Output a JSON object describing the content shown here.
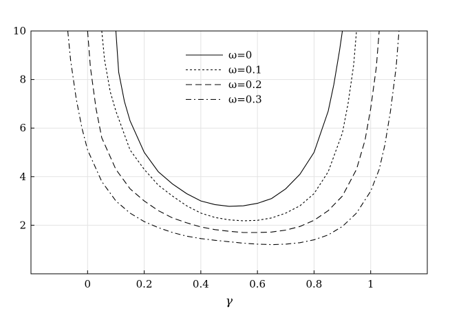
{
  "chart_data": {
    "type": "line",
    "xlabel": "γ",
    "ylabel": "",
    "xlim": [
      -0.2,
      1.2
    ],
    "ylim": [
      0,
      10
    ],
    "xticks": [
      0,
      0.2,
      0.4,
      0.6,
      0.8,
      1
    ],
    "xtick_labels": [
      "0",
      "0.2",
      "0.4",
      "0.6",
      "0.8",
      "1"
    ],
    "yticks": [
      2,
      4,
      6,
      8,
      10
    ],
    "ytick_labels": [
      "2",
      "4",
      "6",
      "8",
      "10"
    ],
    "grid": true,
    "legend_position": "top-center",
    "series": [
      {
        "name": "ω=0",
        "style": "solid",
        "x": [
          0.1,
          0.11,
          0.13,
          0.15,
          0.2,
          0.25,
          0.3,
          0.35,
          0.4,
          0.45,
          0.5,
          0.55,
          0.6,
          0.65,
          0.7,
          0.75,
          0.8,
          0.85,
          0.87,
          0.89,
          0.9
        ],
        "y": [
          10.0,
          8.3,
          7.1,
          6.3,
          5.0,
          4.2,
          3.7,
          3.3,
          3.0,
          2.85,
          2.78,
          2.8,
          2.9,
          3.1,
          3.5,
          4.1,
          5.0,
          6.7,
          7.8,
          9.2,
          10.0
        ]
      },
      {
        "name": "ω=0.1",
        "style": "dotted",
        "x": [
          0.05,
          0.06,
          0.08,
          0.1,
          0.15,
          0.2,
          0.25,
          0.3,
          0.35,
          0.4,
          0.45,
          0.5,
          0.55,
          0.6,
          0.65,
          0.7,
          0.75,
          0.8,
          0.85,
          0.9,
          0.92,
          0.94,
          0.95
        ],
        "y": [
          10.0,
          8.8,
          7.5,
          6.7,
          5.1,
          4.3,
          3.65,
          3.2,
          2.8,
          2.5,
          2.32,
          2.22,
          2.18,
          2.2,
          2.3,
          2.5,
          2.8,
          3.3,
          4.2,
          5.8,
          7.0,
          8.6,
          10.0
        ]
      },
      {
        "name": "ω=0.2",
        "style": "dashed",
        "x": [
          0.0,
          0.01,
          0.03,
          0.05,
          0.1,
          0.15,
          0.2,
          0.25,
          0.3,
          0.35,
          0.4,
          0.45,
          0.5,
          0.55,
          0.6,
          0.65,
          0.7,
          0.75,
          0.8,
          0.85,
          0.9,
          0.95,
          0.98,
          1.0,
          1.02,
          1.03
        ],
        "y": [
          10.0,
          8.5,
          6.8,
          5.6,
          4.3,
          3.5,
          3.0,
          2.6,
          2.3,
          2.1,
          1.93,
          1.82,
          1.75,
          1.7,
          1.7,
          1.72,
          1.8,
          1.95,
          2.2,
          2.6,
          3.2,
          4.3,
          5.5,
          6.8,
          8.5,
          10.0
        ]
      },
      {
        "name": "ω=0.3",
        "style": "dashdot",
        "x": [
          -0.07,
          -0.06,
          -0.04,
          -0.02,
          0.0,
          0.05,
          0.1,
          0.15,
          0.2,
          0.25,
          0.3,
          0.35,
          0.4,
          0.45,
          0.5,
          0.55,
          0.6,
          0.65,
          0.7,
          0.75,
          0.8,
          0.85,
          0.9,
          0.95,
          1.0,
          1.03,
          1.05,
          1.07,
          1.09,
          1.1
        ],
        "y": [
          10.0,
          8.8,
          7.2,
          6.0,
          5.1,
          3.8,
          3.0,
          2.5,
          2.15,
          1.9,
          1.7,
          1.55,
          1.45,
          1.38,
          1.32,
          1.26,
          1.22,
          1.2,
          1.22,
          1.28,
          1.4,
          1.6,
          1.95,
          2.5,
          3.4,
          4.3,
          5.3,
          6.7,
          8.5,
          10.0
        ]
      }
    ]
  }
}
